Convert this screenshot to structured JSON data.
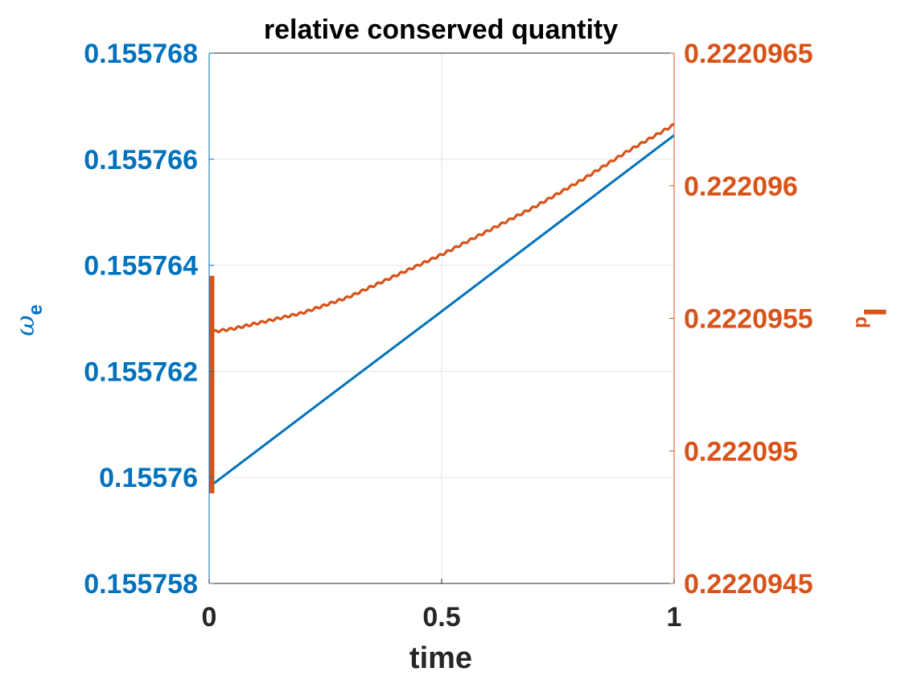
{
  "chart_data": {
    "type": "line",
    "title": "relative conserved quantity",
    "xlabel": "time",
    "xlim": [
      0,
      1
    ],
    "xticks": [
      0,
      0.5,
      1
    ],
    "xtick_labels": [
      "0",
      "0.5",
      "1"
    ],
    "grid": true,
    "y_left": {
      "label_main": "ω",
      "label_sub": "e",
      "color": "#0072BD",
      "lim": [
        0.155758,
        0.155768
      ],
      "ticks": [
        0.155758,
        0.15576,
        0.155762,
        0.155764,
        0.155766,
        0.155768
      ],
      "tick_labels": [
        "0.155758",
        "0.15576",
        "0.155762",
        "0.155764",
        "0.155766",
        "0.155768"
      ]
    },
    "y_right": {
      "label_main": "I",
      "label_sub": "d",
      "color": "#D95319",
      "lim": [
        0.2220945,
        0.2220965
      ],
      "ticks": [
        0.2220945,
        0.222095,
        0.2220955,
        0.222096,
        0.2220965
      ],
      "tick_labels": [
        "0.2220945",
        "0.222095",
        "0.2220955",
        "0.222096",
        "0.2220965"
      ]
    },
    "series": [
      {
        "axis": "left",
        "color": "#0072BD",
        "x": [
          0,
          0.25,
          0.5,
          0.75,
          1
        ],
        "y": [
          0.15575982,
          0.15576148,
          0.15576313,
          0.15576479,
          0.15576645
        ]
      },
      {
        "axis": "right",
        "color": "#D95319",
        "initial_transient": {
          "x": 0.006,
          "y_min": 0.22209484,
          "y_max": 0.22209566
        },
        "x": [
          0.01,
          0.05,
          0.1,
          0.15,
          0.2,
          0.3,
          0.4,
          0.5,
          0.6,
          0.7,
          0.8,
          0.9,
          1
        ],
        "y": [
          0.22209545,
          0.22209546,
          0.22209548,
          0.2220955,
          0.22209552,
          0.22209558,
          0.22209566,
          0.22209574,
          0.22209583,
          0.22209592,
          0.22209602,
          0.22209613,
          0.22209623
        ]
      }
    ]
  }
}
